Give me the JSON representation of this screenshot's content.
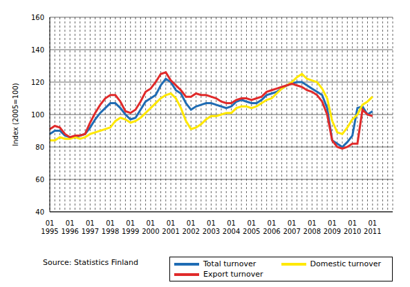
{
  "chart_data": {
    "type": "line",
    "y_label": "Index (2005=100)",
    "annotations": [
      "Source: Statistics Finland"
    ],
    "categories": [
      "01 1995",
      null,
      null,
      null,
      "01 1996",
      null,
      null,
      null,
      "01 1997",
      null,
      null,
      null,
      "01 1998",
      null,
      null,
      null,
      "01 1999",
      null,
      null,
      null,
      "01 2000",
      null,
      null,
      null,
      "01 2001",
      null,
      null,
      null,
      "01 2002",
      null,
      null,
      null,
      "01 2003",
      null,
      null,
      null,
      "01 2004",
      null,
      null,
      null,
      "01 2005",
      null,
      null,
      null,
      "01 2006",
      null,
      null,
      null,
      "01 2007",
      null,
      null,
      null,
      "01 2008",
      null,
      null,
      null,
      "01 2009",
      null,
      null,
      null,
      "01 2010",
      null,
      null,
      null,
      "01 2011",
      null,
      null,
      null,
      null
    ],
    "series": [
      {
        "name": "Total turnover",
        "color": "#1f6cb4",
        "values": [
          88,
          90,
          90,
          87,
          86,
          86,
          87,
          88,
          92,
          97,
          101,
          104,
          107,
          107,
          104,
          100,
          97,
          98,
          103,
          108,
          110,
          112,
          118,
          122,
          120,
          115,
          113,
          107,
          103,
          105,
          106,
          107,
          107,
          106,
          105,
          104,
          105,
          108,
          109,
          108,
          107,
          107,
          109,
          112,
          113,
          114,
          116,
          118,
          119,
          120,
          120,
          118,
          116,
          114,
          112,
          104,
          84,
          82,
          80,
          83,
          87,
          104,
          105,
          100,
          102,
          null,
          null,
          null,
          null
        ]
      },
      {
        "name": "Domestic turnover",
        "color": "#ffe800",
        "values": [
          84,
          84,
          86,
          85,
          85,
          86,
          85,
          86,
          88,
          89,
          90,
          91,
          92,
          96,
          98,
          97,
          95,
          96,
          98,
          101,
          104,
          107,
          110,
          112,
          113,
          110,
          104,
          96,
          91,
          92,
          94,
          97,
          99,
          99,
          100,
          101,
          101,
          104,
          105,
          105,
          104,
          105,
          107,
          109,
          110,
          113,
          116,
          118,
          120,
          123,
          125,
          122,
          121,
          120,
          116,
          110,
          96,
          89,
          88,
          92,
          97,
          100,
          106,
          108,
          111,
          null,
          null,
          null,
          null
        ]
      },
      {
        "name": "Export turnover",
        "color": "#e02a2a",
        "values": [
          91,
          93,
          92,
          88,
          86,
          87,
          87,
          88,
          95,
          101,
          106,
          110,
          112,
          112,
          108,
          102,
          101,
          103,
          108,
          114,
          116,
          120,
          125,
          126,
          121,
          118,
          115,
          111,
          111,
          113,
          112,
          112,
          111,
          110,
          108,
          107,
          107,
          109,
          110,
          110,
          109,
          110,
          111,
          114,
          115,
          116,
          117,
          118,
          119,
          118,
          117,
          115,
          114,
          112,
          108,
          100,
          84,
          80,
          79,
          80,
          82,
          82,
          103,
          100,
          99,
          null,
          null,
          null,
          null
        ]
      }
    ],
    "ylim": [
      40,
      160
    ],
    "yticks": [
      40,
      60,
      80,
      100,
      120,
      140,
      160
    ],
    "grid": true,
    "legend": "bottom right"
  }
}
